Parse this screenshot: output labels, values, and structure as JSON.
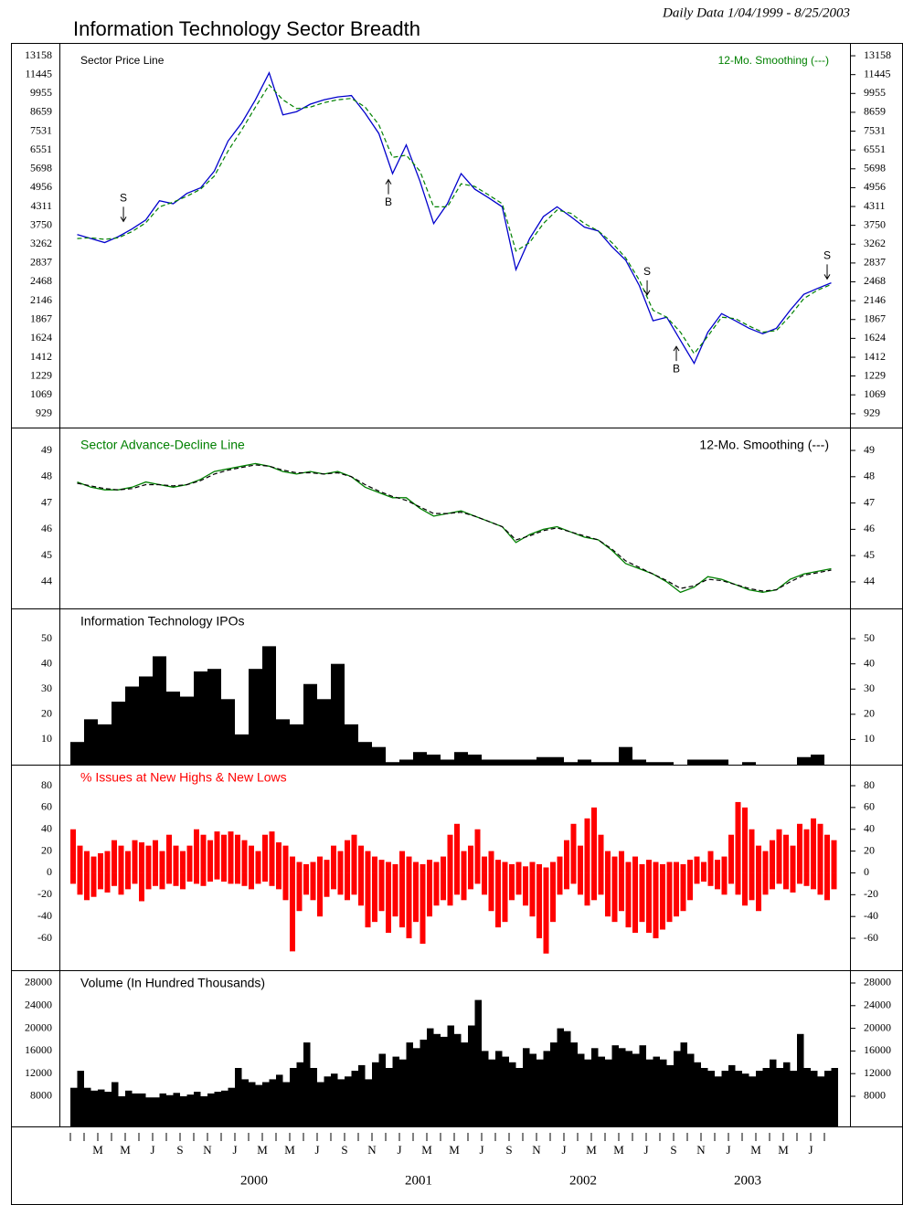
{
  "chart_data": {
    "type": "panels",
    "title": "Information Technology Sector Breadth",
    "subtitle": "Daily Data 1/04/1999 - 8/25/2003",
    "categories": [
      null,
      null,
      "M",
      null,
      "M",
      null,
      "J",
      null,
      "S",
      null,
      "N",
      null,
      "J",
      null,
      "M",
      null,
      "M",
      null,
      "J",
      null,
      "S",
      null,
      "N",
      null,
      "J",
      null,
      "M",
      null,
      "M",
      null,
      "J",
      null,
      "S",
      null,
      "N",
      null,
      "J",
      null,
      "M",
      null,
      "M",
      null,
      "J",
      null,
      "S",
      null,
      "N",
      null,
      "J",
      null,
      "M",
      null,
      "M",
      null,
      "J",
      null
    ],
    "years": [
      2000,
      2001,
      2002,
      2003
    ],
    "panels": [
      {
        "type": "line",
        "log_scale": true,
        "ylim": [
          839,
          14470
        ],
        "yticks": [
          13158,
          11445,
          9955,
          8659,
          7531,
          6551,
          5698,
          4956,
          4311,
          3750,
          3262,
          2837,
          2468,
          2146,
          1867,
          1624,
          1412,
          1229,
          1069,
          929
        ],
        "series": [
          {
            "name": "Sector Price Line",
            "color": "#0000cc",
            "label_color": "#000000",
            "values": [
              3500,
              3400,
              3300,
              3450,
              3650,
              3900,
              4500,
              4400,
              4750,
              4950,
              5600,
              7000,
              8000,
              9500,
              11600,
              8500,
              8700,
              9200,
              9500,
              9700,
              9800,
              8600,
              7400,
              5500,
              6800,
              5200,
              3800,
              4400,
              5500,
              4900,
              4600,
              4300,
              2700,
              3400,
              4000,
              4300,
              4000,
              3700,
              3600,
              3200,
              2900,
              2400,
              1850,
              1900,
              1600,
              1350,
              1700,
              1950,
              1850,
              1750,
              1680,
              1750,
              2000,
              2250,
              2350,
              2450
            ]
          },
          {
            "name": "12-Mo. Smoothing (---)",
            "color": "#008000",
            "dashed": true,
            "values": [
              3400,
              3420,
              3380,
              3420,
              3580,
              3820,
              4300,
              4450,
              4650,
              4900,
              5400,
              6500,
              7600,
              9000,
              10600,
              9500,
              8900,
              9000,
              9300,
              9500,
              9600,
              9000,
              7900,
              6200,
              6300,
              5600,
              4300,
              4300,
              5100,
              5000,
              4700,
              4400,
              3100,
              3300,
              3800,
              4200,
              4100,
              3800,
              3600,
              3300,
              2950,
              2500,
              2000,
              1900,
              1700,
              1450,
              1650,
              1900,
              1880,
              1780,
              1700,
              1720,
              1920,
              2180,
              2320,
              2420
            ]
          }
        ],
        "annotations": [
          {
            "text": "S",
            "x": 3.87,
            "y": 3860,
            "direction": "down"
          },
          {
            "text": "B",
            "x": 23.2,
            "y": 5260,
            "direction": "up"
          },
          {
            "text": "S",
            "x": 42.07,
            "y": 2240,
            "direction": "down"
          },
          {
            "text": "B",
            "x": 44.2,
            "y": 1530,
            "direction": "up"
          },
          {
            "text": "S",
            "x": 55.2,
            "y": 2520,
            "direction": "down"
          }
        ]
      },
      {
        "type": "line",
        "ylim": [
          42.99,
          49.87
        ],
        "yticks": [
          49,
          48,
          47,
          46,
          45,
          44
        ],
        "series": [
          {
            "name": "Sector Advance-Decline Line",
            "color": "#008000",
            "values": [
              47.8,
              47.6,
              47.5,
              47.5,
              47.6,
              47.8,
              47.7,
              47.6,
              47.7,
              47.9,
              48.2,
              48.3,
              48.4,
              48.5,
              48.4,
              48.2,
              48.1,
              48.2,
              48.1,
              48.2,
              48.0,
              47.6,
              47.4,
              47.2,
              47.2,
              46.8,
              46.5,
              46.6,
              46.7,
              46.5,
              46.3,
              46.1,
              45.5,
              45.8,
              46.0,
              46.1,
              45.9,
              45.7,
              45.6,
              45.2,
              44.7,
              44.5,
              44.3,
              44.0,
              43.6,
              43.8,
              44.2,
              44.1,
              43.9,
              43.7,
              43.6,
              43.7,
              44.1,
              44.3,
              44.4,
              44.5
            ]
          },
          {
            "name": "12-Mo. Smoothing (---)",
            "color": "#000000",
            "dashed": true,
            "values": [
              47.75,
              47.65,
              47.55,
              47.5,
              47.55,
              47.7,
              47.7,
              47.65,
              47.7,
              47.85,
              48.1,
              48.25,
              48.35,
              48.45,
              48.4,
              48.25,
              48.15,
              48.15,
              48.1,
              48.15,
              48.0,
              47.7,
              47.45,
              47.25,
              47.1,
              46.85,
              46.6,
              46.6,
              46.65,
              46.5,
              46.3,
              46.1,
              45.6,
              45.75,
              45.95,
              46.05,
              45.9,
              45.75,
              45.6,
              45.25,
              44.8,
              44.55,
              44.3,
              44.05,
              43.75,
              43.85,
              44.1,
              44.05,
              43.9,
              43.75,
              43.65,
              43.7,
              44.0,
              44.25,
              44.35,
              44.45
            ]
          }
        ]
      },
      {
        "type": "bar",
        "title": "Information Technology IPOs",
        "color": "#000000",
        "ylim": [
          0,
          62
        ],
        "yticks": [
          50,
          40,
          30,
          20,
          10
        ],
        "values": [
          9,
          18,
          16,
          25,
          31,
          35,
          43,
          29,
          27,
          37,
          38,
          26,
          12,
          38,
          47,
          18,
          16,
          32,
          26,
          40,
          16,
          9,
          7,
          1,
          2,
          5,
          4,
          2,
          5,
          4,
          2,
          2,
          2,
          2,
          3,
          3,
          1,
          2,
          1,
          1,
          7,
          2,
          1,
          1,
          0,
          2,
          2,
          2,
          0,
          1,
          0,
          0,
          0,
          3,
          4,
          0
        ]
      },
      {
        "type": "bar",
        "title": "% Issues at New Highs & New Lows",
        "title_color": "#ff0000",
        "color": "#ff0000",
        "ylim": [
          -89.3,
          99.3
        ],
        "yticks": [
          80,
          60,
          40,
          20,
          0,
          -20,
          -40,
          -60
        ],
        "highs": [
          40,
          25,
          20,
          15,
          18,
          20,
          30,
          25,
          20,
          30,
          28,
          25,
          30,
          20,
          35,
          25,
          20,
          25,
          40,
          35,
          30,
          38,
          35,
          38,
          35,
          30,
          25,
          20,
          35,
          38,
          28,
          25,
          15,
          10,
          8,
          10,
          15,
          12,
          25,
          20,
          30,
          35,
          25,
          20,
          15,
          12,
          10,
          8,
          20,
          15,
          10,
          8,
          12,
          10,
          15,
          35,
          45,
          20,
          25,
          40,
          15,
          20,
          12,
          10,
          8,
          10,
          6,
          10,
          8,
          5,
          10,
          15,
          30,
          45,
          25,
          50,
          60,
          35,
          20,
          15,
          20,
          10,
          15,
          8,
          12,
          10,
          8,
          10,
          10,
          8,
          12,
          15,
          10,
          20,
          12,
          15,
          35,
          65,
          60,
          40,
          25,
          20,
          30,
          40,
          35,
          25,
          45,
          40,
          50,
          45,
          35,
          30
        ],
        "lows": [
          -10,
          -20,
          -25,
          -22,
          -15,
          -18,
          -12,
          -20,
          -15,
          -10,
          -26,
          -15,
          -12,
          -15,
          -10,
          -12,
          -15,
          -8,
          -10,
          -12,
          -8,
          -6,
          -8,
          -10,
          -10,
          -12,
          -15,
          -10,
          -8,
          -12,
          -15,
          -25,
          -72,
          -35,
          -20,
          -25,
          -40,
          -22,
          -15,
          -20,
          -25,
          -20,
          -30,
          -50,
          -45,
          -35,
          -55,
          -40,
          -50,
          -60,
          -45,
          -65,
          -40,
          -30,
          -25,
          -30,
          -20,
          -25,
          -15,
          -10,
          -20,
          -35,
          -50,
          -45,
          -25,
          -20,
          -30,
          -40,
          -60,
          -74,
          -45,
          -20,
          -15,
          -10,
          -20,
          -30,
          -25,
          -20,
          -40,
          -45,
          -35,
          -50,
          -55,
          -45,
          -55,
          -60,
          -52,
          -45,
          -40,
          -35,
          -25,
          -10,
          -8,
          -12,
          -15,
          -20,
          -10,
          -20,
          -30,
          -25,
          -35,
          -20,
          -15,
          -10,
          -15,
          -18,
          -10,
          -12,
          -15,
          -20,
          -25,
          -15
        ]
      },
      {
        "type": "bar",
        "title": "Volume (In Hundred Thousands)",
        "color": "#000000",
        "ylim": [
          2677,
          30258
        ],
        "yticks": [
          28000,
          24000,
          20000,
          16000,
          12000,
          8000
        ],
        "values": [
          9500,
          12500,
          9500,
          9000,
          9200,
          8800,
          10500,
          8000,
          9000,
          8500,
          8500,
          7800,
          7800,
          8500,
          8200,
          8600,
          8000,
          8300,
          8800,
          8000,
          8500,
          8800,
          9000,
          9500,
          13000,
          11000,
          10500,
          10000,
          10500,
          11000,
          11800,
          10500,
          13000,
          14000,
          17500,
          13000,
          10500,
          11500,
          12000,
          11000,
          11500,
          12500,
          13500,
          11000,
          14000,
          15500,
          13000,
          15000,
          14500,
          17500,
          16500,
          18000,
          20000,
          19000,
          18500,
          20500,
          19000,
          17500,
          20500,
          25000,
          16000,
          14500,
          16000,
          15000,
          14000,
          13000,
          16500,
          15500,
          14500,
          16000,
          17500,
          20000,
          19500,
          17500,
          15500,
          14500,
          16500,
          15000,
          14500,
          17000,
          16500,
          16000,
          15500,
          17000,
          14500,
          15000,
          14500,
          13500,
          16000,
          17500,
          15500,
          14000,
          13000,
          12500,
          11500,
          12500,
          13500,
          12500,
          12000,
          11500,
          12500,
          13000,
          14500,
          13000,
          14000,
          12500,
          19000,
          13000,
          12500,
          11500,
          12500,
          13000
        ]
      }
    ]
  }
}
